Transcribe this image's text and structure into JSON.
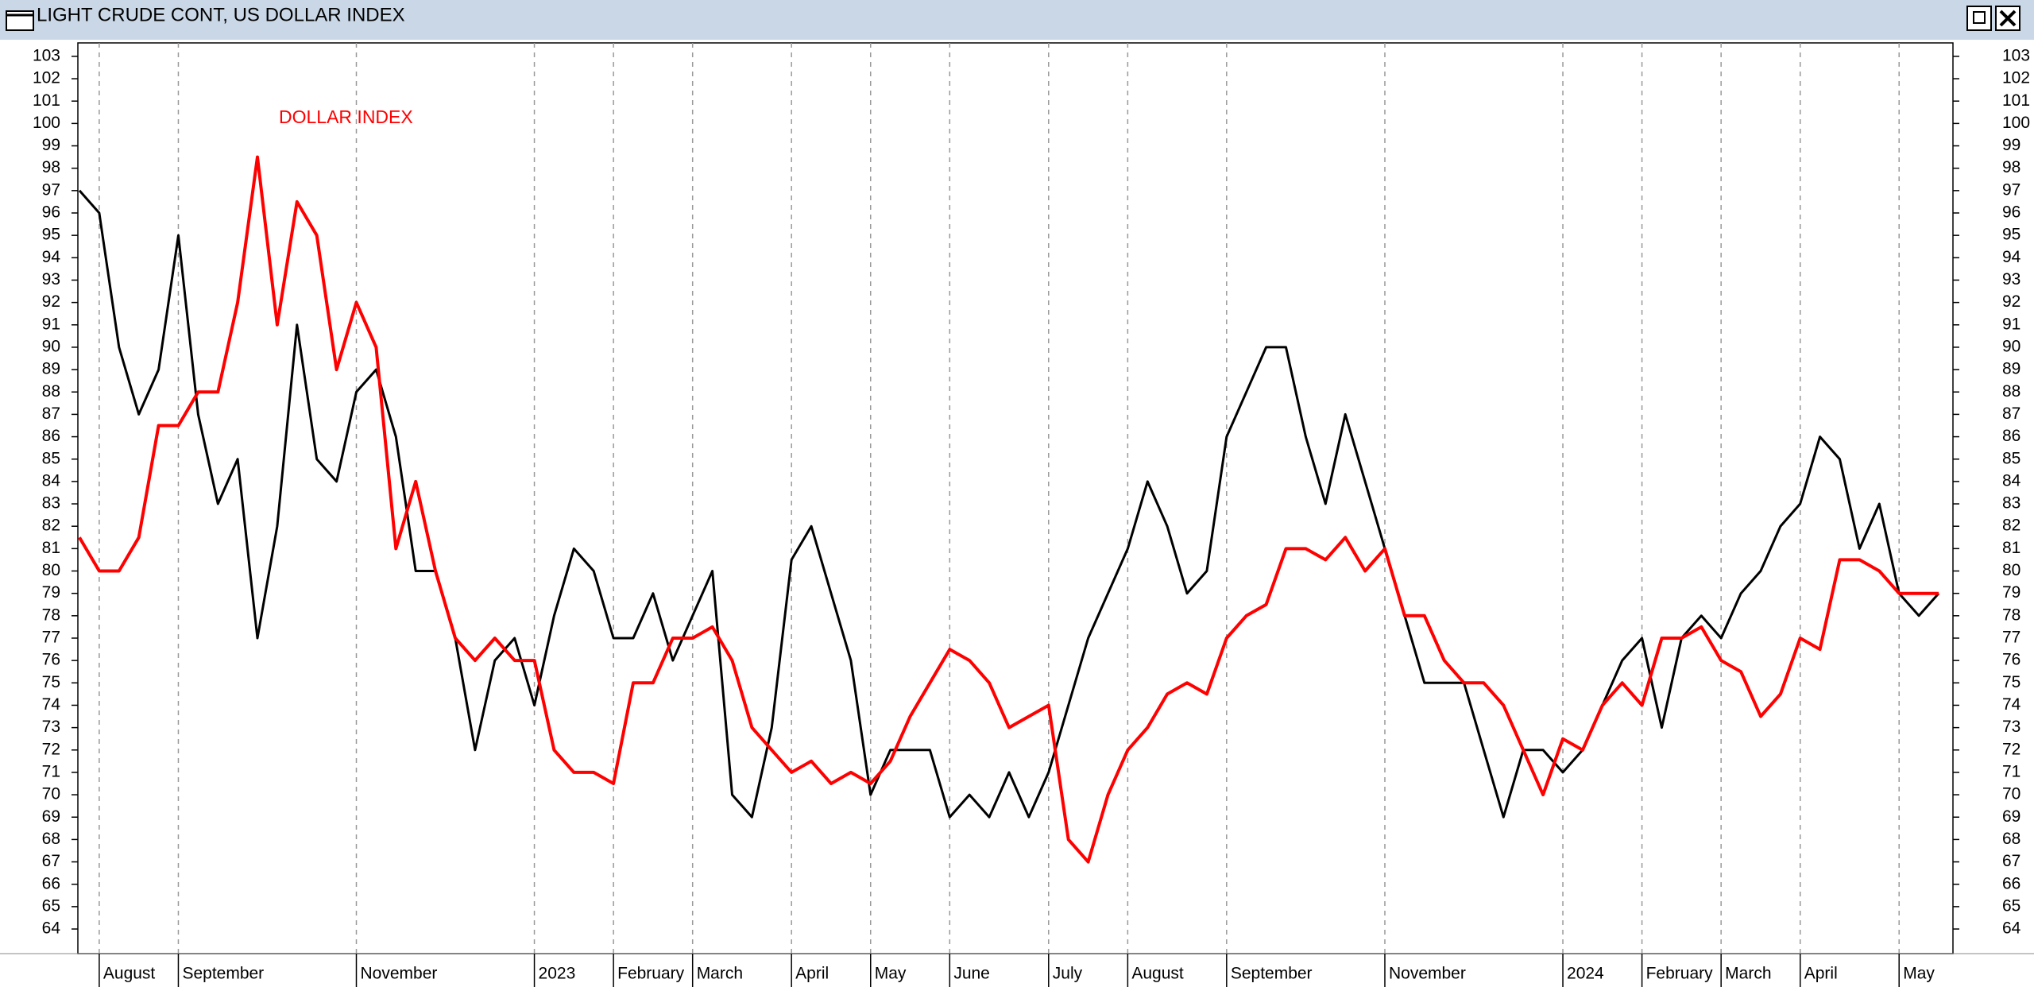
{
  "chart_data": {
    "type": "line",
    "title": "LIGHT CRUDE CONT, US DOLLAR INDEX",
    "annotation": "DOLLAR INDEX",
    "categories": [
      null,
      "August",
      null,
      null,
      null,
      "September",
      null,
      null,
      null,
      null,
      null,
      null,
      null,
      null,
      "November",
      null,
      null,
      null,
      null,
      null,
      null,
      null,
      null,
      "2023",
      null,
      null,
      null,
      "February",
      null,
      null,
      null,
      "March",
      null,
      null,
      null,
      null,
      "April",
      null,
      null,
      null,
      "May",
      null,
      null,
      null,
      "June",
      null,
      null,
      null,
      null,
      "July",
      null,
      null,
      null,
      "August",
      null,
      null,
      null,
      null,
      "September",
      null,
      null,
      null,
      null,
      null,
      null,
      null,
      "November",
      null,
      null,
      null,
      null,
      null,
      null,
      null,
      null,
      "2024",
      null,
      null,
      null,
      "February",
      null,
      null,
      null,
      "March",
      null,
      null,
      null,
      "April",
      null,
      null,
      null,
      null,
      "May",
      null,
      null
    ],
    "series": [
      {
        "name": "LIGHT CRUDE CONT",
        "color": "#000000",
        "values": [
          97,
          96,
          90,
          87,
          89,
          95,
          87,
          83,
          85,
          77,
          82,
          91,
          85,
          84,
          88,
          89,
          86,
          80,
          80,
          77,
          72,
          76,
          77,
          74,
          78,
          81,
          80,
          77,
          77,
          79,
          76,
          78,
          80,
          70,
          69,
          73,
          80.5,
          82,
          79,
          76,
          70,
          72,
          72,
          72,
          69,
          70,
          69,
          71,
          69,
          71,
          74,
          77,
          79,
          81,
          84,
          82,
          79,
          80,
          86,
          88,
          90,
          90,
          86,
          83,
          87,
          84,
          81,
          78,
          75,
          75,
          75,
          72,
          69,
          72,
          72,
          71,
          72,
          74,
          76,
          77,
          73,
          77,
          78,
          77,
          79,
          80,
          82,
          83,
          86,
          85,
          81,
          83,
          79,
          78,
          79
        ]
      },
      {
        "name": "DOLLAR INDEX",
        "color": "#ff0000",
        "values": [
          81.5,
          80,
          80,
          81.5,
          86.5,
          86.5,
          88,
          88,
          92,
          98.5,
          91,
          96.5,
          95,
          89,
          92,
          90,
          81,
          84,
          80,
          77,
          76,
          77,
          76,
          76,
          72,
          71,
          71,
          70.5,
          75,
          75,
          77,
          77,
          77.5,
          76,
          73,
          72,
          71,
          71.5,
          70.5,
          71,
          70.5,
          71.5,
          73.5,
          75,
          76.5,
          76,
          75,
          73,
          73.5,
          74,
          68,
          67,
          70,
          72,
          73,
          74.5,
          75,
          74.5,
          77,
          78,
          78.5,
          81,
          81,
          80.5,
          81.5,
          80,
          81,
          78,
          78,
          76,
          75,
          75,
          74,
          72,
          70,
          72.5,
          72,
          74,
          75,
          74,
          77,
          77,
          77.5,
          76,
          75.5,
          73.5,
          74.5,
          77,
          76.5,
          80.5,
          80.5,
          80,
          79,
          79,
          79
        ]
      }
    ],
    "ylim": [
      62.9,
      103.6
    ],
    "yticks": [
      64,
      65,
      66,
      67,
      68,
      69,
      70,
      71,
      72,
      73,
      74,
      75,
      76,
      77,
      78,
      79,
      80,
      81,
      82,
      83,
      84,
      85,
      86,
      87,
      88,
      89,
      90,
      91,
      92,
      93,
      94,
      95,
      96,
      97,
      98,
      99,
      100,
      101,
      102,
      103
    ],
    "grid": true
  }
}
